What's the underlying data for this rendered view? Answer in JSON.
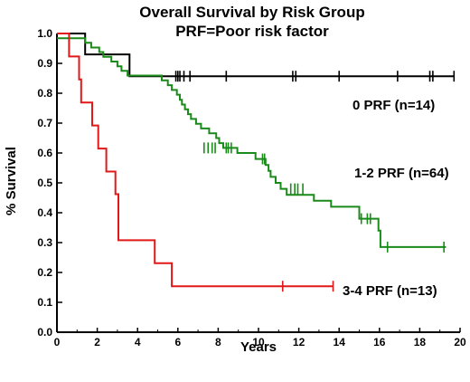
{
  "chart_data": {
    "type": "line",
    "subtype": "kaplan-meier-step",
    "title": "Overall Survival by Risk Group",
    "subtitle": "PRF=Poor risk factor",
    "xlabel": "Years",
    "ylabel": "% Survival",
    "xlim": [
      0,
      20
    ],
    "ylim": [
      0,
      1.0
    ],
    "xticks": [
      0,
      2,
      4,
      6,
      8,
      10,
      12,
      14,
      16,
      18,
      20
    ],
    "yticks": [
      0.0,
      0.1,
      0.2,
      0.3,
      0.4,
      0.5,
      0.6,
      0.7,
      0.8,
      0.9,
      1.0
    ],
    "xtick_labels": [
      "0",
      "2",
      "4",
      "6",
      "8",
      "10",
      "12",
      "14",
      "16",
      "18",
      "20"
    ],
    "ytick_labels": [
      "0.0",
      "0.1",
      "0.2",
      "0.3",
      "0.4",
      "0.5",
      "0.6",
      "0.7",
      "0.8",
      "0.9",
      "1.0"
    ],
    "grid": false,
    "series": [
      {
        "name": "0 PRF (n=14)",
        "color": "#000000",
        "steps": [
          [
            0,
            1.0
          ],
          [
            1.4,
            0.93
          ],
          [
            3.6,
            0.857
          ],
          [
            19.7,
            0.857
          ]
        ],
        "censored": [
          [
            5.9,
            0.857
          ],
          [
            6.0,
            0.857
          ],
          [
            6.1,
            0.857
          ],
          [
            6.3,
            0.857
          ],
          [
            6.6,
            0.857
          ],
          [
            8.4,
            0.857
          ],
          [
            11.7,
            0.857
          ],
          [
            11.85,
            0.857
          ],
          [
            14.0,
            0.857
          ],
          [
            16.9,
            0.857
          ],
          [
            18.5,
            0.857
          ],
          [
            18.65,
            0.857
          ],
          [
            19.7,
            0.857
          ]
        ]
      },
      {
        "name": "1-2 PRF (n=64)",
        "color": "#1a8a1a",
        "steps": [
          [
            0,
            0.984
          ],
          [
            1.4,
            0.969
          ],
          [
            1.7,
            0.953
          ],
          [
            2.1,
            0.938
          ],
          [
            2.3,
            0.922
          ],
          [
            2.7,
            0.906
          ],
          [
            3.0,
            0.89
          ],
          [
            3.2,
            0.875
          ],
          [
            3.5,
            0.859
          ],
          [
            4.2,
            0.859
          ],
          [
            5.2,
            0.843
          ],
          [
            5.5,
            0.827
          ],
          [
            5.7,
            0.811
          ],
          [
            5.95,
            0.795
          ],
          [
            6.1,
            0.778
          ],
          [
            6.2,
            0.762
          ],
          [
            6.35,
            0.746
          ],
          [
            6.5,
            0.73
          ],
          [
            6.65,
            0.714
          ],
          [
            6.9,
            0.698
          ],
          [
            7.15,
            0.682
          ],
          [
            7.55,
            0.666
          ],
          [
            7.9,
            0.65
          ],
          [
            8.05,
            0.633
          ],
          [
            8.25,
            0.617
          ],
          [
            8.95,
            0.6
          ],
          [
            9.85,
            0.58
          ],
          [
            10.35,
            0.56
          ],
          [
            10.5,
            0.54
          ],
          [
            10.6,
            0.52
          ],
          [
            10.85,
            0.5
          ],
          [
            11.1,
            0.48
          ],
          [
            11.4,
            0.46
          ],
          [
            12.75,
            0.44
          ],
          [
            13.6,
            0.42
          ],
          [
            15.0,
            0.38
          ],
          [
            15.95,
            0.34
          ],
          [
            16.05,
            0.285
          ],
          [
            19.3,
            0.285
          ]
        ],
        "censored": [
          [
            7.3,
            0.617
          ],
          [
            7.5,
            0.617
          ],
          [
            7.7,
            0.617
          ],
          [
            7.85,
            0.617
          ],
          [
            8.4,
            0.617
          ],
          [
            8.5,
            0.617
          ],
          [
            8.65,
            0.617
          ],
          [
            10.2,
            0.58
          ],
          [
            10.3,
            0.58
          ],
          [
            11.6,
            0.48
          ],
          [
            11.8,
            0.48
          ],
          [
            11.95,
            0.48
          ],
          [
            12.2,
            0.48
          ],
          [
            15.1,
            0.38
          ],
          [
            15.4,
            0.38
          ],
          [
            15.55,
            0.38
          ],
          [
            16.4,
            0.285
          ],
          [
            19.2,
            0.285
          ]
        ]
      },
      {
        "name": "3-4 PRF (n=13)",
        "color": "#e01818",
        "steps": [
          [
            0,
            1.0
          ],
          [
            0.6,
            0.923
          ],
          [
            1.1,
            0.846
          ],
          [
            1.2,
            0.769
          ],
          [
            1.75,
            0.692
          ],
          [
            2.05,
            0.615
          ],
          [
            2.45,
            0.538
          ],
          [
            2.9,
            0.462
          ],
          [
            3.05,
            0.308
          ],
          [
            4.3,
            0.308
          ],
          [
            4.85,
            0.231
          ],
          [
            5.7,
            0.154
          ],
          [
            13.7,
            0.154
          ]
        ],
        "censored": [
          [
            11.2,
            0.154
          ],
          [
            13.7,
            0.154
          ]
        ]
      }
    ]
  }
}
